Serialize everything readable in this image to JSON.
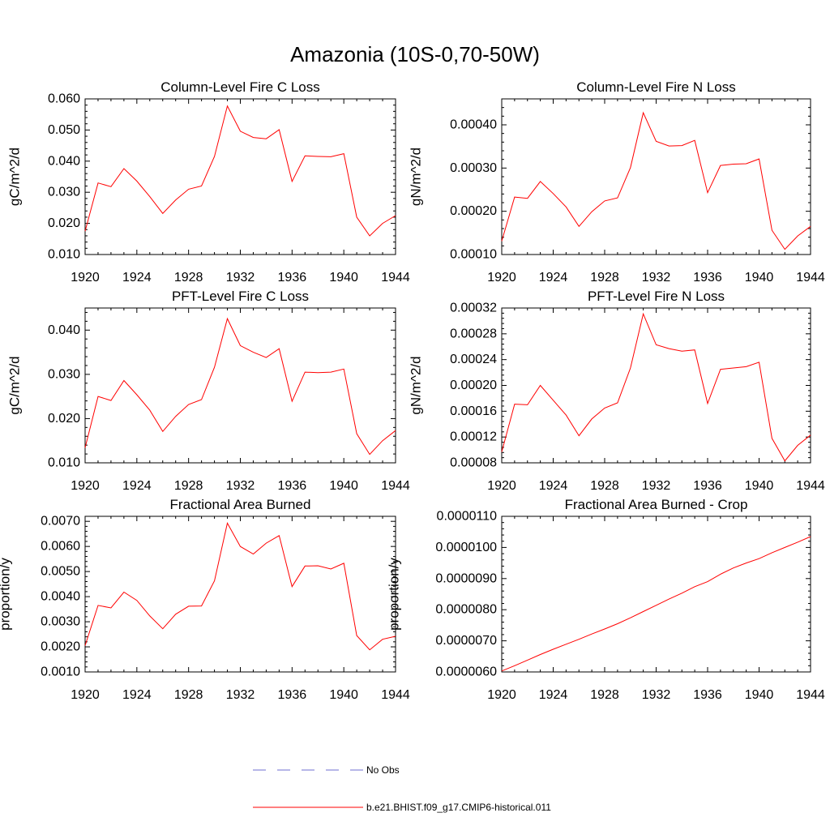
{
  "figure_title": "Amazonia (10S-0,70-50W)",
  "colors": {
    "model": "#ff0000",
    "obs": "#6f6fd0",
    "axis": "#000000"
  },
  "legend": {
    "entries": [
      {
        "label": "No Obs",
        "style": "dashed",
        "color": "#6f6fd0"
      },
      {
        "label": "b.e21.BHIST.f09_g17.CMIP6-historical.011",
        "style": "solid",
        "color": "#ff0000"
      }
    ]
  },
  "chart_data": [
    {
      "type": "line",
      "title": "Column-Level Fire C Loss",
      "ylabel": "gC/m^2/d",
      "xlim": [
        1920,
        1944
      ],
      "ylim": [
        0.01,
        0.06
      ],
      "xticks": [
        "1920",
        "1924",
        "1928",
        "1932",
        "1936",
        "1940",
        "1944"
      ],
      "yticks": [
        "0.010",
        "0.020",
        "0.030",
        "0.040",
        "0.050",
        "0.060"
      ],
      "x": [
        1920,
        1921,
        1922,
        1923,
        1924,
        1925,
        1926,
        1927,
        1928,
        1929,
        1930,
        1931,
        1932,
        1933,
        1934,
        1935,
        1936,
        1937,
        1938,
        1939,
        1940,
        1941,
        1942,
        1943,
        1944
      ],
      "series": [
        {
          "values": [
            0.0175,
            0.033,
            0.0318,
            0.0376,
            0.0336,
            0.0286,
            0.0232,
            0.0275,
            0.031,
            0.032,
            0.0415,
            0.0577,
            0.0496,
            0.0476,
            0.0472,
            0.0501,
            0.0335,
            0.0417,
            0.0415,
            0.0414,
            0.0424,
            0.022,
            0.016,
            0.02,
            0.0225
          ]
        }
      ]
    },
    {
      "type": "line",
      "title": "Column-Level Fire N Loss",
      "ylabel": "gN/m^2/d",
      "xlim": [
        1920,
        1944
      ],
      "ylim": [
        0.0001,
        0.00046
      ],
      "xticks": [
        "1920",
        "1924",
        "1928",
        "1932",
        "1936",
        "1940",
        "1944"
      ],
      "yticks": [
        "0.00010",
        "0.00020",
        "0.00030",
        "0.00040"
      ],
      "x": [
        1920,
        1921,
        1922,
        1923,
        1924,
        1925,
        1926,
        1927,
        1928,
        1929,
        1930,
        1931,
        1932,
        1933,
        1934,
        1935,
        1936,
        1937,
        1938,
        1939,
        1940,
        1941,
        1942,
        1943,
        1944
      ],
      "series": [
        {
          "values": [
            0.000131,
            0.000233,
            0.00023,
            0.000269,
            0.000241,
            0.00021,
            0.000165,
            0.000199,
            0.000224,
            0.000231,
            0.000301,
            0.000428,
            0.000362,
            0.000351,
            0.000352,
            0.000364,
            0.000243,
            0.000306,
            0.000309,
            0.00031,
            0.000321,
            0.000156,
            0.000112,
            0.000143,
            0.000165
          ]
        }
      ]
    },
    {
      "type": "line",
      "title": "PFT-Level Fire C Loss",
      "ylabel": "gC/m^2/d",
      "xlim": [
        1920,
        1944
      ],
      "ylim": [
        0.01,
        0.045
      ],
      "xticks": [
        "1920",
        "1924",
        "1928",
        "1932",
        "1936",
        "1940",
        "1944"
      ],
      "yticks": [
        "0.010",
        "0.020",
        "0.030",
        "0.040"
      ],
      "x": [
        1920,
        1921,
        1922,
        1923,
        1924,
        1925,
        1926,
        1927,
        1928,
        1929,
        1930,
        1931,
        1932,
        1933,
        1934,
        1935,
        1936,
        1937,
        1938,
        1939,
        1940,
        1941,
        1942,
        1943,
        1944
      ],
      "series": [
        {
          "values": [
            0.0134,
            0.025,
            0.0241,
            0.0286,
            0.0254,
            0.0219,
            0.0171,
            0.0205,
            0.0232,
            0.0243,
            0.0316,
            0.0426,
            0.0365,
            0.035,
            0.0338,
            0.0358,
            0.0239,
            0.0305,
            0.0304,
            0.0305,
            0.0312,
            0.0166,
            0.0119,
            0.015,
            0.0173
          ]
        }
      ]
    },
    {
      "type": "line",
      "title": "PFT-Level Fire N Loss",
      "ylabel": "gN/m^2/d",
      "xlim": [
        1920,
        1944
      ],
      "ylim": [
        8e-05,
        0.00032
      ],
      "xticks": [
        "1920",
        "1924",
        "1928",
        "1932",
        "1936",
        "1940",
        "1944"
      ],
      "yticks": [
        "0.00008",
        "0.00012",
        "0.00016",
        "0.00020",
        "0.00024",
        "0.00028",
        "0.00032"
      ],
      "x": [
        1920,
        1921,
        1922,
        1923,
        1924,
        1925,
        1926,
        1927,
        1928,
        1929,
        1930,
        1931,
        1932,
        1933,
        1934,
        1935,
        1936,
        1937,
        1938,
        1939,
        1940,
        1941,
        1942,
        1943,
        1944
      ],
      "series": [
        {
          "values": [
            9.7e-05,
            0.000171,
            0.00017,
            0.0002,
            0.000177,
            0.000154,
            0.000122,
            0.000148,
            0.000165,
            0.000173,
            0.000227,
            0.000311,
            0.000263,
            0.000257,
            0.000253,
            0.000255,
            0.000172,
            0.000225,
            0.000227,
            0.000229,
            0.000236,
            0.000118,
            8.3e-05,
            0.000107,
            0.000123
          ]
        }
      ]
    },
    {
      "type": "line",
      "title": "Fractional Area Burned",
      "ylabel": "proportion/y",
      "xlim": [
        1920,
        1944
      ],
      "ylim": [
        0.001,
        0.0072
      ],
      "xticks": [
        "1920",
        "1924",
        "1928",
        "1932",
        "1936",
        "1940",
        "1944"
      ],
      "yticks": [
        "0.0010",
        "0.0020",
        "0.0030",
        "0.0040",
        "0.0050",
        "0.0060",
        "0.0070"
      ],
      "x": [
        1920,
        1921,
        1922,
        1923,
        1924,
        1925,
        1926,
        1927,
        1928,
        1929,
        1930,
        1931,
        1932,
        1933,
        1934,
        1935,
        1936,
        1937,
        1938,
        1939,
        1940,
        1941,
        1942,
        1943,
        1944
      ],
      "series": [
        {
          "values": [
            0.00205,
            0.00365,
            0.00355,
            0.00418,
            0.00385,
            0.00323,
            0.00272,
            0.0033,
            0.00362,
            0.00363,
            0.00463,
            0.00693,
            0.006,
            0.0057,
            0.00613,
            0.00643,
            0.0044,
            0.00522,
            0.00523,
            0.0051,
            0.00533,
            0.00245,
            0.00188,
            0.0023,
            0.00242
          ]
        }
      ]
    },
    {
      "type": "line",
      "title": "Fractional Area Burned - Crop",
      "ylabel": "proportion/y",
      "xlim": [
        1920,
        1944
      ],
      "ylim": [
        6e-06,
        1.1e-05
      ],
      "xticks": [
        "1920",
        "1924",
        "1928",
        "1932",
        "1936",
        "1940",
        "1944"
      ],
      "yticks": [
        "0.0000060",
        "0.0000070",
        "0.0000080",
        "0.0000090",
        "0.0000100",
        "0.0000110"
      ],
      "x": [
        1920,
        1921,
        1922,
        1923,
        1924,
        1925,
        1926,
        1927,
        1928,
        1929,
        1930,
        1931,
        1932,
        1933,
        1934,
        1935,
        1936,
        1937,
        1938,
        1939,
        1940,
        1941,
        1942,
        1943,
        1944
      ],
      "series": [
        {
          "values": [
            6.03e-06,
            6.2e-06,
            6.38e-06,
            6.56e-06,
            6.73e-06,
            6.89e-06,
            7.05e-06,
            7.22e-06,
            7.38e-06,
            7.55e-06,
            7.74e-06,
            7.94e-06,
            8.14e-06,
            8.34e-06,
            8.53e-06,
            8.74e-06,
            8.9e-06,
            9.14e-06,
            9.34e-06,
            9.5e-06,
            9.64e-06,
            9.83e-06,
            1e-05,
            1.017e-05,
            1.035e-05
          ]
        }
      ]
    }
  ]
}
